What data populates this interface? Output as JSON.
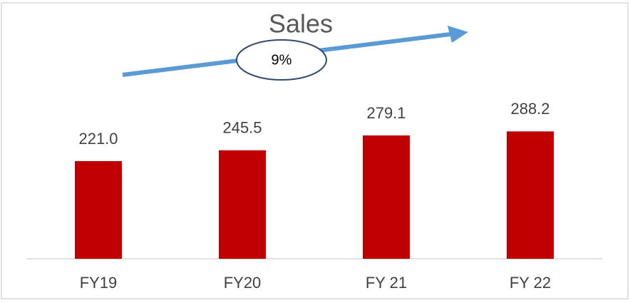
{
  "chart_data": {
    "type": "bar",
    "title": "Sales",
    "annotations": [
      "9%"
    ],
    "categories": [
      "FY19",
      "FY20",
      "FY 21",
      "FY 22"
    ],
    "values": [
      221.0,
      245.5,
      279.1,
      288.2
    ],
    "value_labels": [
      "221.0",
      "245.5",
      "279.1",
      "288.2"
    ],
    "color": "#c00000"
  }
}
